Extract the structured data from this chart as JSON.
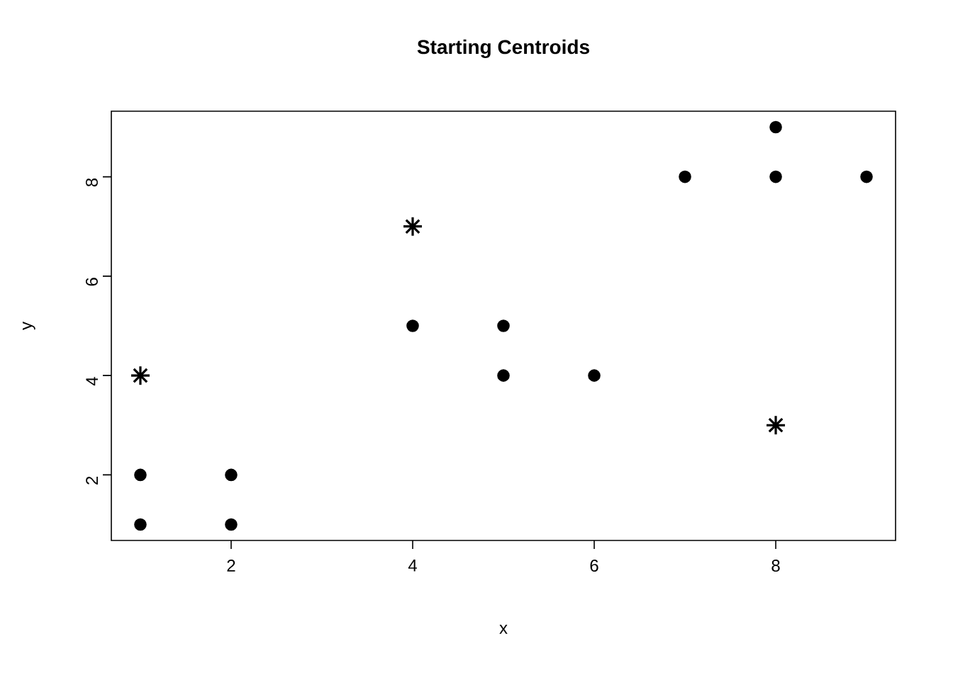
{
  "chart_data": {
    "type": "scatter",
    "title": "Starting Centroids",
    "xlabel": "x",
    "ylabel": "y",
    "xlim": [
      0.68,
      9.32
    ],
    "ylim": [
      0.68,
      9.32
    ],
    "xticks": [
      2,
      4,
      6,
      8
    ],
    "yticks": [
      2,
      4,
      6,
      8
    ],
    "series": [
      {
        "color": "#000000",
        "marker": "circle",
        "x": [
          1,
          1,
          2,
          2,
          4,
          5,
          5,
          6,
          7,
          8,
          8,
          9
        ],
        "values": [
          1,
          2,
          1,
          2,
          5,
          5,
          4,
          4,
          8,
          8,
          9,
          8
        ]
      },
      {
        "color": "#000000",
        "marker": "cross",
        "x": [
          1,
          4,
          8
        ],
        "values": [
          4,
          7,
          3
        ]
      }
    ]
  }
}
